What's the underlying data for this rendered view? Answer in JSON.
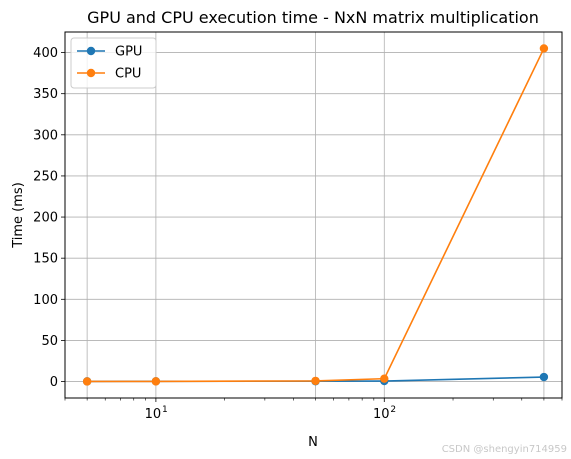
{
  "chart_data": {
    "type": "line",
    "title": "GPU and CPU execution time - NxN matrix multiplication",
    "xlabel": "N",
    "ylabel": "Time (ms)",
    "xscale": "log",
    "x": [
      5,
      10,
      50,
      100,
      500
    ],
    "xlim": [
      4,
      600
    ],
    "ylim": [
      -20,
      425
    ],
    "yticks": [
      0,
      50,
      100,
      150,
      200,
      250,
      300,
      350,
      400
    ],
    "xticks_major": [
      {
        "value": 10,
        "base": "10",
        "exp": "1"
      },
      {
        "value": 100,
        "base": "10",
        "exp": "2"
      }
    ],
    "grid": true,
    "legend_position": "top-left",
    "series": [
      {
        "name": "GPU",
        "color": "#1f77b4",
        "values": [
          0.2,
          0.3,
          0.4,
          0.6,
          5.5
        ]
      },
      {
        "name": "CPU",
        "color": "#ff7f0e",
        "values": [
          0.1,
          0.2,
          0.8,
          3.5,
          405
        ]
      }
    ]
  },
  "watermark": "CSDN @shengyin714959"
}
